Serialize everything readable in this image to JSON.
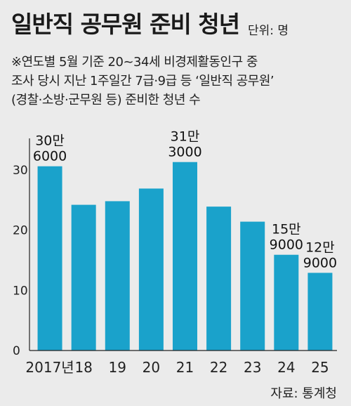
{
  "title": "일반직 공무원 준비 청년",
  "unit": "단위: 명",
  "notes": [
    "※연도별 5월 기준 20~34세 비경제활동인구 중",
    "조사 당시 지난 1주일간 7급·9급 등 ‘일반직 공무원’",
    "(경찰·소방·군무원 등) 준비한 청년 수"
  ],
  "source": "자료: 통계청",
  "colors": {
    "bar": "#1aa2cb",
    "background": "#ebebeb",
    "axis": "#222222"
  },
  "chart_data": {
    "type": "bar",
    "categories": [
      "2017년",
      "18",
      "19",
      "20",
      "21",
      "22",
      "23",
      "24",
      "25"
    ],
    "values": [
      306000,
      242000,
      248000,
      269000,
      313000,
      239000,
      214000,
      159000,
      129000
    ],
    "ylim": [
      0,
      35
    ],
    "y_unit_note": "만",
    "yticks": [
      "0",
      "10",
      "20",
      "30"
    ],
    "annotations": [
      {
        "index": 0,
        "lines": [
          "30만",
          "6000"
        ]
      },
      {
        "index": 4,
        "lines": [
          "31만",
          "3000"
        ]
      },
      {
        "index": 7,
        "lines": [
          "15만",
          "9000"
        ]
      },
      {
        "index": 8,
        "lines": [
          "12만",
          "9000"
        ]
      }
    ]
  }
}
